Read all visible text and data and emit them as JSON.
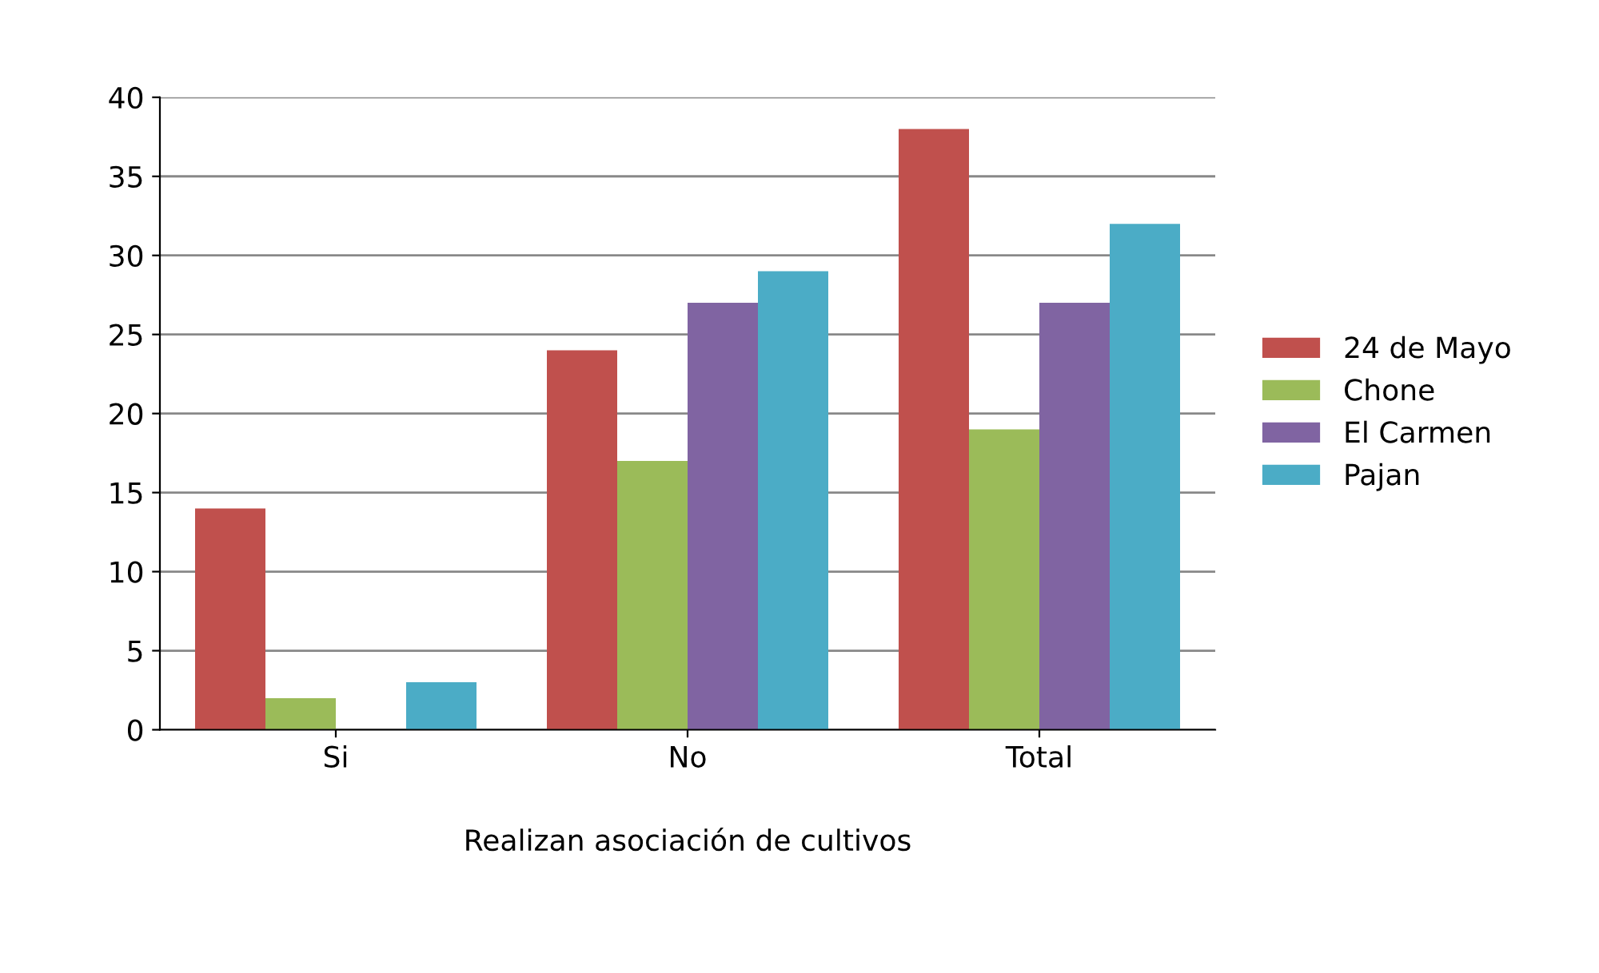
{
  "chart_data": {
    "type": "bar",
    "xlabel": "Realizan asociación de cultivos",
    "categories": [
      "Si",
      "No",
      "Total"
    ],
    "series": [
      {
        "name": "24 de Mayo",
        "color": "#c0504d",
        "values": [
          14,
          24,
          38
        ]
      },
      {
        "name": "Chone",
        "color": "#9bbb59",
        "values": [
          2,
          17,
          19
        ]
      },
      {
        "name": "El Carmen",
        "color": "#8064a2",
        "values": [
          0,
          27,
          27
        ]
      },
      {
        "name": "Pajan",
        "color": "#4bacc6",
        "values": [
          3,
          29,
          32
        ]
      }
    ],
    "ylim": [
      0,
      40
    ],
    "yticks": [
      0,
      5,
      10,
      15,
      20,
      25,
      30,
      35,
      40
    ],
    "grid": "y",
    "legend": "right"
  }
}
